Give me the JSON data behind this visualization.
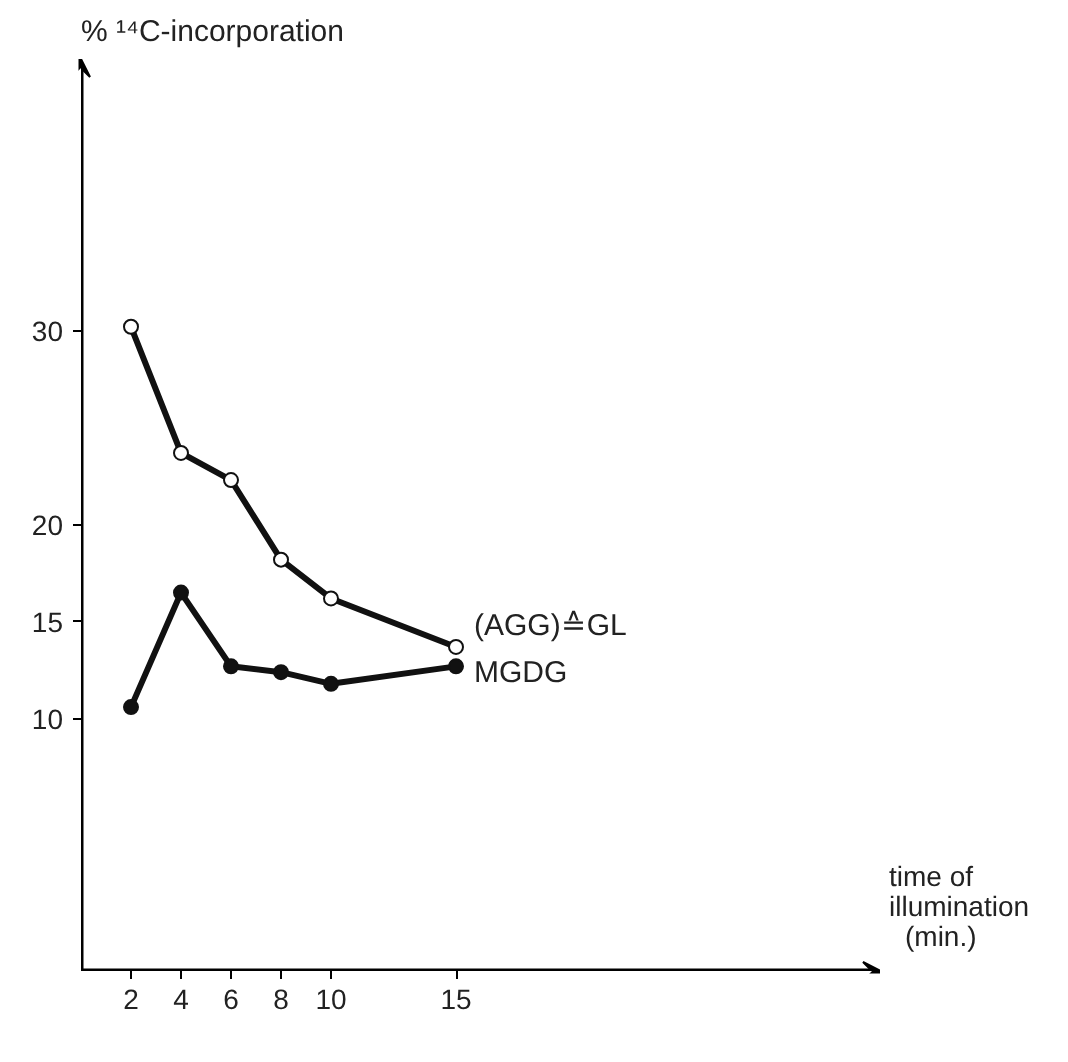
{
  "chart_data": {
    "type": "line",
    "ylabel": "% ¹⁴C-incorporation",
    "xlabel": "time of illumination (min.)",
    "x": [
      2,
      4,
      6,
      8,
      10,
      15
    ],
    "series": [
      {
        "name": "(AGG)≙GL",
        "color": "#111111",
        "values": [
          30.2,
          23.7,
          22.3,
          18.2,
          16.2,
          13.7
        ]
      },
      {
        "name": "MGDG",
        "color": "#111111",
        "values": [
          10.6,
          16.5,
          12.7,
          12.4,
          11.8,
          12.7
        ]
      }
    ],
    "xlim": [
      0,
      32
    ],
    "xticks": [
      2,
      4,
      6,
      8,
      10,
      15
    ],
    "ylim": [
      -3,
      44
    ],
    "yticks": [
      10,
      15,
      20,
      30
    ],
    "grid": false,
    "marker": "circle",
    "line_style": "solid"
  }
}
